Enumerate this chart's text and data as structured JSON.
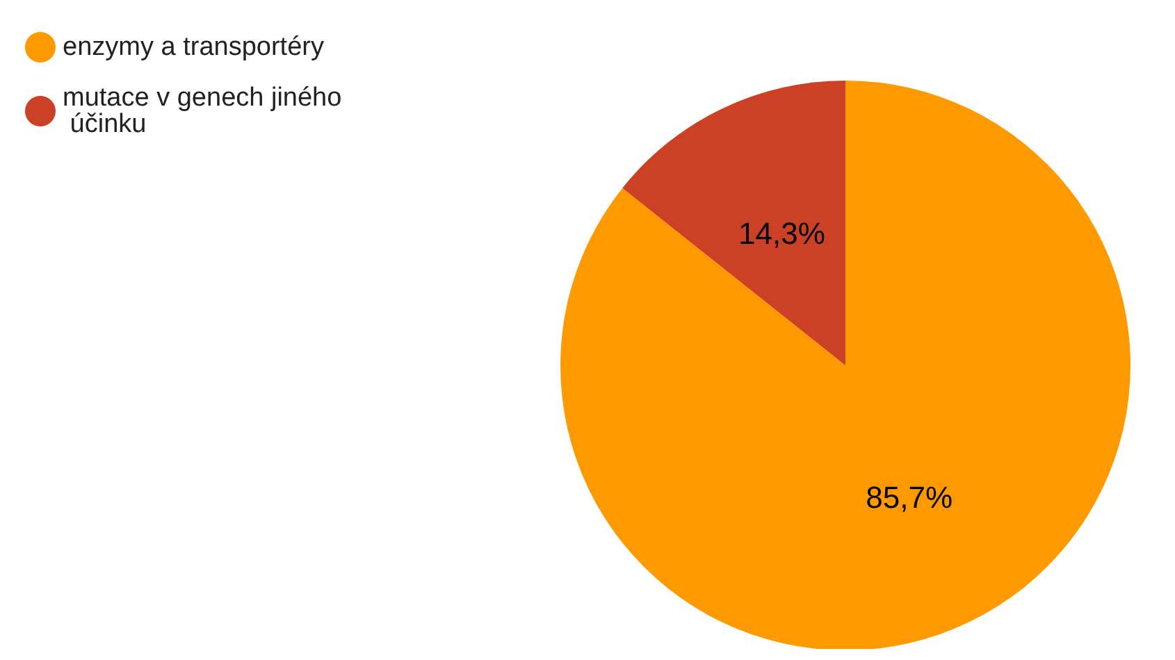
{
  "chart_data": {
    "type": "pie",
    "categories": [
      "enzymy a transportéry",
      "mutace v genech jiného účinku"
    ],
    "values": [
      85.7,
      14.3
    ],
    "colors": [
      "#ff9900",
      "#cc4125"
    ],
    "value_labels": [
      "85,7%",
      "14,3%"
    ],
    "legend": "top left"
  }
}
